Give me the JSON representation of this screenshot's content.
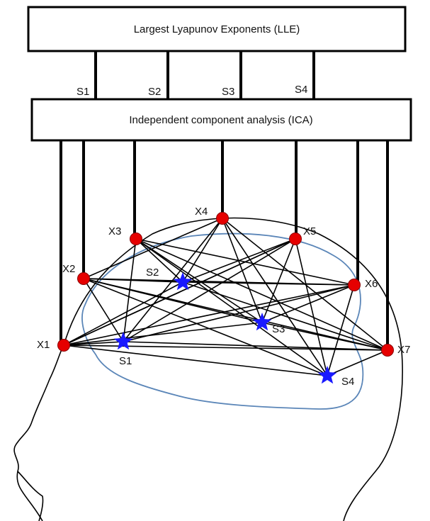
{
  "boxes": {
    "lle": "Largest Lyapunov Exponents (LLE)",
    "ica": "Independent component analysis (ICA)"
  },
  "channels": [
    "S1",
    "S2",
    "S3",
    "S4"
  ],
  "electrodes": [
    "X1",
    "X2",
    "X3",
    "X4",
    "X5",
    "X6",
    "X7"
  ],
  "sources": [
    "S1",
    "S2",
    "S3",
    "S4"
  ],
  "colors": {
    "electrode": "#e60000",
    "source": "#1a1aff",
    "brain_outline": "#5b86b8",
    "line": "#000000"
  }
}
